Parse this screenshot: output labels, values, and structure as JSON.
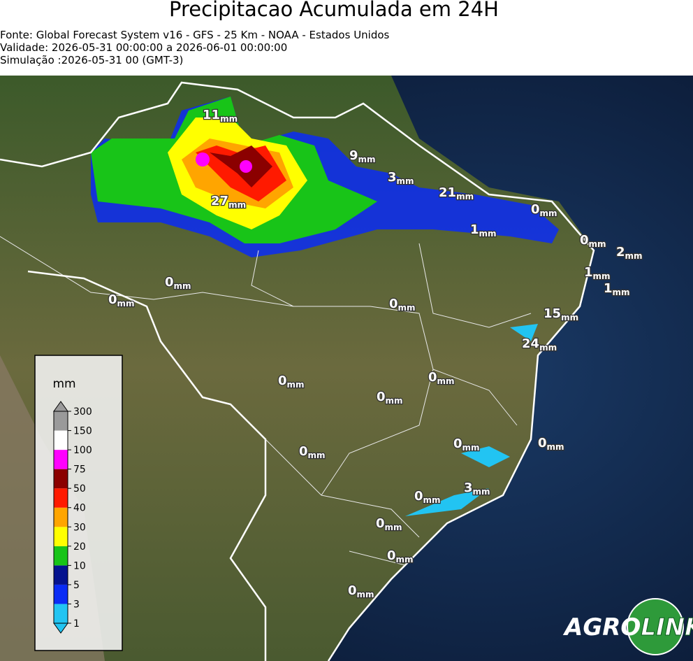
{
  "header": {
    "title": "Precipitacao Acumulada em 24H",
    "source": "Fonte: Global Forecast System v16 - GFS - 25 Km - NOAA - Estados Unidos",
    "validity": "Validade: 2026-05-31 00:00:00 a 2026-06-01 00:00:00",
    "simulation": "Simulação :2026-05-31 00 (GMT-3)"
  },
  "map_labels": [
    {
      "value": 11,
      "unit": "mm"
    },
    {
      "value": 9,
      "unit": "mm"
    },
    {
      "value": 3,
      "unit": "mm"
    },
    {
      "value": 21,
      "unit": "mm"
    },
    {
      "value": 0,
      "unit": "mm"
    },
    {
      "value": 27,
      "unit": "mm"
    },
    {
      "value": 1,
      "unit": "mm"
    },
    {
      "value": 0,
      "unit": "mm"
    },
    {
      "value": 2,
      "unit": "mm"
    },
    {
      "value": 1,
      "unit": "mm"
    },
    {
      "value": 1,
      "unit": "mm"
    },
    {
      "value": 0,
      "unit": "mm"
    },
    {
      "value": 0,
      "unit": "mm"
    },
    {
      "value": 0,
      "unit": "mm"
    },
    {
      "value": 15,
      "unit": "mm"
    },
    {
      "value": 24,
      "unit": "mm"
    },
    {
      "value": 0,
      "unit": "mm"
    },
    {
      "value": 0,
      "unit": "mm"
    },
    {
      "value": 0,
      "unit": "mm"
    },
    {
      "value": 0,
      "unit": "mm"
    },
    {
      "value": 0,
      "unit": "mm"
    },
    {
      "value": 0,
      "unit": "mm"
    },
    {
      "value": 0,
      "unit": "mm"
    },
    {
      "value": 3,
      "unit": "mm"
    },
    {
      "value": 0,
      "unit": "mm"
    },
    {
      "value": 0,
      "unit": "mm"
    },
    {
      "value": 0,
      "unit": "mm"
    }
  ],
  "legend": {
    "title": "mm",
    "ticks": [
      1,
      3,
      5,
      10,
      20,
      30,
      40,
      50,
      75,
      100,
      150,
      300
    ],
    "colors": [
      "#22c4f2",
      "#0a2cf5",
      "#05138f",
      "#18c418",
      "#ffff00",
      "#ffa500",
      "#ff1a00",
      "#8b0000",
      "#ff00ff",
      "#ffffff",
      "#9a9a9a"
    ],
    "under_color": "#22c4f2",
    "over_color": "#9a9a9a"
  },
  "logo": {
    "part1": "AGRO",
    "part2": "LINK"
  }
}
